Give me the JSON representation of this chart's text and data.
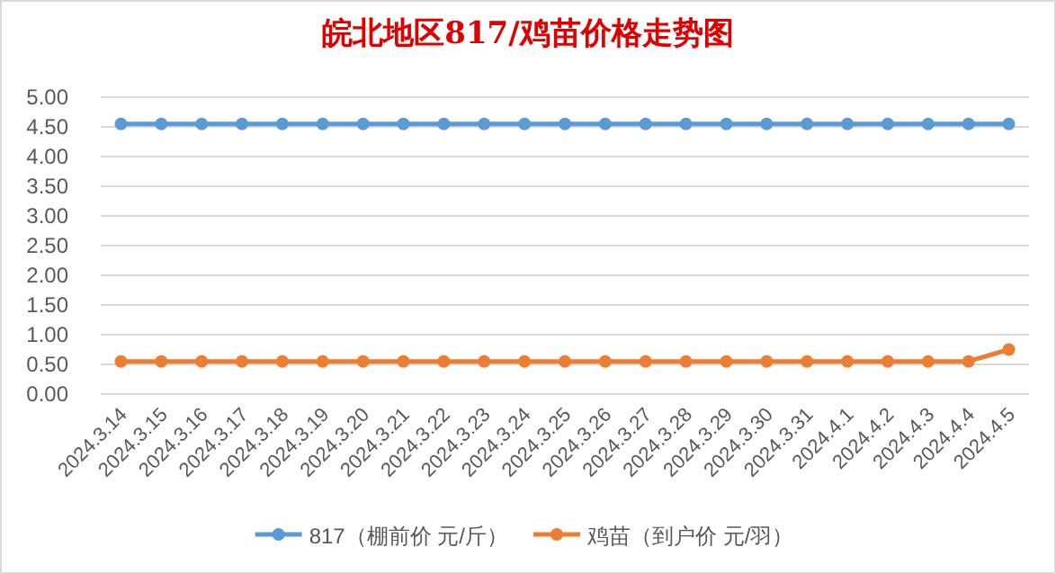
{
  "chart_data": {
    "type": "line",
    "title": "皖北地区817/鸡苗价格走势图",
    "categories": [
      "2024.3.14",
      "2024.3.15",
      "2024.3.16",
      "2024.3.17",
      "2024.3.18",
      "2024.3.19",
      "2024.3.20",
      "2024.3.21",
      "2024.3.22",
      "2024.3.23",
      "2024.3.24",
      "2024.3.25",
      "2024.3.26",
      "2024.3.27",
      "2024.3.28",
      "2024.3.29",
      "2024.3.30",
      "2024.3.31",
      "2024.4.1",
      "2024.4.2",
      "2024.4.3",
      "2024.4.4",
      "2024.4.5"
    ],
    "series": [
      {
        "name": "817（棚前价 元/斤）",
        "color": "#5b9bd5",
        "values": [
          4.55,
          4.55,
          4.55,
          4.55,
          4.55,
          4.55,
          4.55,
          4.55,
          4.55,
          4.55,
          4.55,
          4.55,
          4.55,
          4.55,
          4.55,
          4.55,
          4.55,
          4.55,
          4.55,
          4.55,
          4.55,
          4.55,
          4.55
        ]
      },
      {
        "name": "鸡苗（到户价 元/羽）",
        "color": "#ed7d31",
        "values": [
          0.55,
          0.55,
          0.55,
          0.55,
          0.55,
          0.55,
          0.55,
          0.55,
          0.55,
          0.55,
          0.55,
          0.55,
          0.55,
          0.55,
          0.55,
          0.55,
          0.55,
          0.55,
          0.55,
          0.55,
          0.55,
          0.55,
          0.75
        ]
      }
    ],
    "ylim": [
      0,
      5
    ],
    "yticks": [
      {
        "value": 0,
        "label": "0.00"
      },
      {
        "value": 0.5,
        "label": "0.50"
      },
      {
        "value": 1,
        "label": "1.00"
      },
      {
        "value": 1.5,
        "label": "1.50"
      },
      {
        "value": 2,
        "label": "2.00"
      },
      {
        "value": 2.5,
        "label": "2.50"
      },
      {
        "value": 3,
        "label": "3.00"
      },
      {
        "value": 3.5,
        "label": "3.50"
      },
      {
        "value": 4,
        "label": "4.00"
      },
      {
        "value": 4.5,
        "label": "4.50"
      },
      {
        "value": 5,
        "label": "5.00"
      }
    ],
    "grid": "y",
    "legend": "bottom",
    "marker": "circle",
    "line_style": "solid"
  }
}
